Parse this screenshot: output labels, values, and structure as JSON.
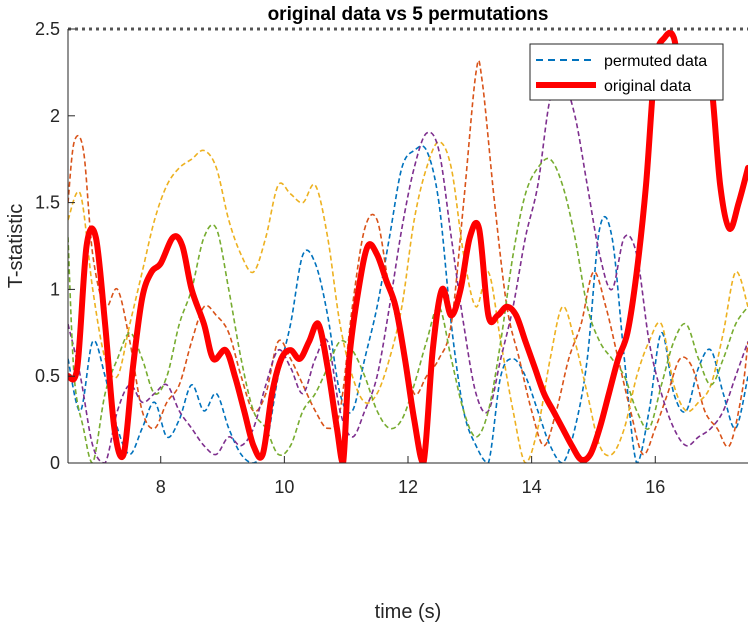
{
  "chart_data": {
    "type": "line",
    "title": "original data vs 5 permutations",
    "xlabel": "time (s)",
    "ylabel": "T-statistic",
    "xlim": [
      6.5,
      17.5
    ],
    "ylim": [
      0,
      2.5
    ],
    "xticks": [
      8,
      10,
      12,
      14,
      16
    ],
    "xtick_labels": [
      "8",
      "10",
      "12",
      "14",
      "16"
    ],
    "yticks": [
      0,
      0.5,
      1,
      1.5,
      2,
      2.5
    ],
    "ytick_labels": [
      "0",
      "0.5",
      "1",
      "1.5",
      "2",
      "2.5"
    ],
    "threshold": 2.5,
    "grid": false,
    "legend": {
      "placement": "top-right",
      "entries": [
        {
          "label": "permuted data",
          "style": "dashed",
          "color": "#0072BD"
        },
        {
          "label": "original data",
          "style": "solid",
          "color": "#FF0000"
        }
      ]
    },
    "series": [
      {
        "style": "solid",
        "color": "#FF0000",
        "x": [
          6.5,
          6.65,
          6.8,
          6.95,
          7.1,
          7.25,
          7.4,
          7.55,
          7.7,
          7.85,
          8.0,
          8.2,
          8.35,
          8.5,
          8.7,
          8.85,
          9.05,
          9.2,
          9.35,
          9.5,
          9.65,
          9.8,
          9.95,
          10.1,
          10.25,
          10.4,
          10.55,
          10.7,
          10.85,
          10.95,
          11.05,
          11.2,
          11.35,
          11.5,
          11.65,
          11.8,
          11.95,
          12.1,
          12.25,
          12.4,
          12.55,
          12.7,
          12.85,
          13.0,
          13.15,
          13.3,
          13.45,
          13.6,
          13.75,
          13.9,
          14.05,
          14.2,
          14.35,
          14.5,
          14.65,
          14.8,
          14.95,
          15.1,
          15.25,
          15.4,
          15.55,
          15.7,
          15.85,
          16.0,
          16.15,
          16.3,
          16.45,
          16.6,
          16.75,
          16.9,
          17.05,
          17.2,
          17.35,
          17.5
        ],
        "y": [
          0.5,
          0.55,
          1.25,
          1.3,
          0.8,
          0.2,
          0.05,
          0.55,
          0.95,
          1.1,
          1.15,
          1.3,
          1.25,
          1.0,
          0.8,
          0.6,
          0.65,
          0.5,
          0.3,
          0.1,
          0.05,
          0.4,
          0.6,
          0.65,
          0.6,
          0.7,
          0.8,
          0.55,
          0.2,
          0.0,
          0.6,
          1.0,
          1.25,
          1.2,
          1.05,
          0.9,
          0.6,
          0.25,
          0.0,
          0.65,
          1.0,
          0.85,
          1.0,
          1.3,
          1.35,
          0.85,
          0.85,
          0.9,
          0.85,
          0.7,
          0.55,
          0.4,
          0.3,
          0.2,
          0.1,
          0.02,
          0.05,
          0.2,
          0.4,
          0.6,
          0.75,
          1.1,
          1.6,
          2.3,
          2.45,
          2.45,
          2.15,
          2.15,
          2.3,
          2.2,
          1.6,
          1.35,
          1.5,
          1.7
        ]
      },
      {
        "style": "dashed",
        "color": "#0072BD",
        "x": [
          6.5,
          6.7,
          6.9,
          7.1,
          7.3,
          7.5,
          7.7,
          7.9,
          8.1,
          8.3,
          8.5,
          8.7,
          8.9,
          9.1,
          9.3,
          9.5,
          9.7,
          9.9,
          10.1,
          10.3,
          10.5,
          10.7,
          10.9,
          11.1,
          11.3,
          11.5,
          11.7,
          11.9,
          12.1,
          12.3,
          12.5,
          12.7,
          12.9,
          13.1,
          13.3,
          13.5,
          13.7,
          13.9,
          14.1,
          14.3,
          14.5,
          14.7,
          14.9,
          15.1,
          15.3,
          15.5,
          15.7,
          15.9,
          16.1,
          16.3,
          16.5,
          16.7,
          16.9,
          17.1,
          17.3,
          17.5
        ],
        "y": [
          0.6,
          0.3,
          0.7,
          0.5,
          0.2,
          0.05,
          0.2,
          0.35,
          0.15,
          0.25,
          0.45,
          0.3,
          0.4,
          0.2,
          0.05,
          0.0,
          0.1,
          0.5,
          0.8,
          1.2,
          1.15,
          0.85,
          0.4,
          0.3,
          0.6,
          0.9,
          1.3,
          1.7,
          1.8,
          1.8,
          1.5,
          0.8,
          0.3,
          0.1,
          0.0,
          0.5,
          0.6,
          0.5,
          0.3,
          0.1,
          0.0,
          0.2,
          0.6,
          1.35,
          1.3,
          0.6,
          0.0,
          0.3,
          0.75,
          0.4,
          0.3,
          0.55,
          0.65,
          0.4,
          0.2,
          0.5
        ]
      },
      {
        "style": "dashed",
        "color": "#D95319",
        "x": [
          6.5,
          6.6,
          6.75,
          6.9,
          7.1,
          7.3,
          7.5,
          7.7,
          7.9,
          8.1,
          8.3,
          8.5,
          8.7,
          8.9,
          9.1,
          9.3,
          9.5,
          9.7,
          9.9,
          10.1,
          10.3,
          10.5,
          10.7,
          10.9,
          11.1,
          11.3,
          11.5,
          11.7,
          11.9,
          12.1,
          12.3,
          12.5,
          12.7,
          12.9,
          13.1,
          13.2,
          13.4,
          13.6,
          13.8,
          14.0,
          14.2,
          14.4,
          14.6,
          14.8,
          15.0,
          15.2,
          15.4,
          15.6,
          15.8,
          16.0,
          16.2,
          16.4,
          16.6,
          16.8,
          17.0,
          17.2,
          17.4,
          17.5
        ],
        "y": [
          1.5,
          1.85,
          1.8,
          1.2,
          0.9,
          1.0,
          0.7,
          0.3,
          0.2,
          0.35,
          0.45,
          0.7,
          0.9,
          0.85,
          0.75,
          0.5,
          0.3,
          0.4,
          0.7,
          0.6,
          0.45,
          0.3,
          0.2,
          0.3,
          0.9,
          1.35,
          1.4,
          1.0,
          0.7,
          0.4,
          0.5,
          0.6,
          0.8,
          1.5,
          2.25,
          2.2,
          1.5,
          0.9,
          0.6,
          0.3,
          0.1,
          0.3,
          0.6,
          0.8,
          1.1,
          0.9,
          0.6,
          0.3,
          0.05,
          0.2,
          0.4,
          0.6,
          0.55,
          0.3,
          0.2,
          0.1,
          0.4,
          0.7
        ]
      },
      {
        "style": "dashed",
        "color": "#EDB120",
        "x": [
          6.5,
          6.7,
          6.9,
          7.1,
          7.3,
          7.5,
          7.7,
          7.9,
          8.1,
          8.3,
          8.5,
          8.7,
          8.9,
          9.1,
          9.3,
          9.5,
          9.7,
          9.9,
          10.1,
          10.3,
          10.5,
          10.7,
          10.9,
          11.1,
          11.3,
          11.5,
          11.7,
          11.9,
          12.1,
          12.3,
          12.5,
          12.7,
          12.9,
          13.1,
          13.3,
          13.5,
          13.7,
          13.9,
          14.1,
          14.3,
          14.5,
          14.7,
          14.9,
          15.1,
          15.3,
          15.5,
          15.7,
          15.9,
          16.1,
          16.3,
          16.5,
          16.7,
          16.9,
          17.1,
          17.3,
          17.5
        ],
        "y": [
          1.4,
          1.55,
          1.0,
          0.6,
          0.5,
          0.8,
          1.1,
          1.4,
          1.6,
          1.7,
          1.75,
          1.8,
          1.7,
          1.4,
          1.2,
          1.1,
          1.3,
          1.6,
          1.55,
          1.5,
          1.6,
          1.3,
          0.8,
          0.5,
          0.35,
          0.4,
          0.6,
          0.9,
          1.4,
          1.7,
          1.85,
          1.7,
          1.2,
          0.9,
          1.1,
          0.7,
          0.3,
          0.0,
          0.2,
          0.6,
          0.9,
          0.7,
          0.4,
          0.1,
          0.05,
          0.2,
          0.5,
          0.7,
          0.8,
          0.45,
          0.3,
          0.35,
          0.45,
          0.75,
          1.1,
          0.9
        ]
      },
      {
        "style": "dashed",
        "color": "#7E2F8E",
        "x": [
          6.5,
          6.7,
          6.9,
          7.1,
          7.3,
          7.5,
          7.7,
          7.9,
          8.1,
          8.3,
          8.5,
          8.7,
          8.9,
          9.1,
          9.3,
          9.5,
          9.7,
          9.9,
          10.1,
          10.3,
          10.5,
          10.7,
          10.9,
          11.1,
          11.3,
          11.5,
          11.7,
          11.9,
          12.1,
          12.3,
          12.5,
          12.7,
          12.9,
          13.1,
          13.3,
          13.5,
          13.7,
          13.9,
          14.1,
          14.3,
          14.5,
          14.7,
          14.9,
          15.1,
          15.3,
          15.5,
          15.7,
          15.9,
          16.1,
          16.3,
          16.5,
          16.7,
          16.9,
          17.1,
          17.3,
          17.5
        ],
        "y": [
          0.8,
          0.5,
          0.1,
          0.0,
          0.3,
          0.45,
          0.35,
          0.4,
          0.45,
          0.3,
          0.2,
          0.1,
          0.05,
          0.15,
          0.1,
          0.2,
          0.45,
          0.65,
          0.55,
          0.4,
          0.6,
          0.7,
          0.3,
          0.15,
          0.3,
          0.5,
          0.9,
          1.35,
          1.7,
          1.9,
          1.8,
          1.3,
          0.8,
          0.4,
          0.3,
          0.6,
          0.9,
          1.3,
          1.6,
          2.1,
          2.2,
          2.0,
          1.6,
          1.2,
          1.0,
          1.3,
          1.2,
          0.7,
          0.4,
          0.2,
          0.1,
          0.15,
          0.2,
          0.3,
          0.5,
          0.7
        ]
      },
      {
        "style": "dashed",
        "color": "#77AC30",
        "x": [
          6.5,
          6.6,
          6.75,
          6.9,
          7.1,
          7.3,
          7.5,
          7.7,
          7.9,
          8.1,
          8.3,
          8.5,
          8.7,
          8.9,
          9.1,
          9.3,
          9.5,
          9.7,
          9.9,
          10.1,
          10.3,
          10.5,
          10.7,
          10.9,
          11.1,
          11.3,
          11.5,
          11.7,
          11.9,
          12.1,
          12.3,
          12.5,
          12.7,
          12.9,
          13.1,
          13.3,
          13.5,
          13.7,
          13.9,
          14.1,
          14.3,
          14.5,
          14.7,
          14.9,
          15.1,
          15.3,
          15.5,
          15.7,
          15.9,
          16.1,
          16.3,
          16.5,
          16.7,
          16.9,
          17.1,
          17.3,
          17.5
        ],
        "y": [
          1.3,
          0.5,
          0.2,
          0.0,
          0.4,
          0.6,
          0.75,
          0.6,
          0.4,
          0.5,
          0.8,
          1.0,
          1.3,
          1.35,
          1.0,
          0.6,
          0.3,
          0.2,
          0.05,
          0.1,
          0.3,
          0.4,
          0.55,
          0.7,
          0.65,
          0.5,
          0.3,
          0.2,
          0.25,
          0.45,
          0.7,
          0.9,
          0.6,
          0.3,
          0.15,
          0.3,
          0.7,
          1.2,
          1.55,
          1.7,
          1.75,
          1.6,
          1.3,
          0.9,
          0.7,
          0.6,
          0.5,
          0.3,
          0.2,
          0.45,
          0.7,
          0.8,
          0.6,
          0.45,
          0.6,
          0.8,
          0.9
        ]
      }
    ]
  }
}
